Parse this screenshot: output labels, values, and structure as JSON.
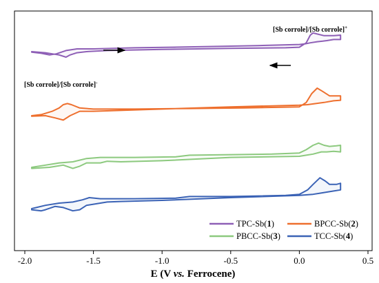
{
  "chart_data": {
    "type": "line",
    "title": "",
    "xlabel_parts": [
      "E (V ",
      "vs.",
      " Ferrocene)"
    ],
    "ylabel": "",
    "xlim": [
      -2.05,
      0.5
    ],
    "xticks": [
      -2.0,
      -1.5,
      -1.0,
      -0.5,
      0.0,
      0.5
    ],
    "xtick_labels": [
      "-2.0",
      "-1.5",
      "-1.0",
      "-0.5",
      "0.0",
      "0.5"
    ],
    "yticks_shown": false,
    "grid": false,
    "legend_position": "bottom-right",
    "annotations": {
      "oxidation": {
        "text": "[Sb corrole]/[Sb corrole]",
        "sup": "+"
      },
      "reduction": {
        "text": "[Sb corrole]/[Sb corrole]",
        "sup": "-"
      }
    },
    "series": [
      {
        "name": "TPC-Sb(1)",
        "name_prefix": "TPC-Sb(",
        "name_num": "1",
        "name_suffix": ")",
        "color": "#8e5fb6",
        "forward": [
          [
            -1.95,
            0
          ],
          [
            -1.85,
            -1
          ],
          [
            -1.75,
            -3
          ],
          [
            -1.7,
            -5
          ],
          [
            -1.67,
            -3
          ],
          [
            -1.62,
            -1
          ],
          [
            -1.55,
            0
          ],
          [
            -1.4,
            1
          ],
          [
            -1.0,
            2
          ],
          [
            -0.5,
            3
          ],
          [
            -0.1,
            3.5
          ],
          [
            0.0,
            4
          ],
          [
            0.05,
            8
          ],
          [
            0.08,
            15
          ],
          [
            0.1,
            17
          ],
          [
            0.13,
            16
          ],
          [
            0.18,
            14.5
          ],
          [
            0.25,
            14.5
          ],
          [
            0.3,
            15
          ]
        ],
        "reverse": [
          [
            0.3,
            11
          ],
          [
            0.25,
            11
          ],
          [
            0.2,
            10
          ],
          [
            0.17,
            9.5
          ],
          [
            0.13,
            9
          ],
          [
            0.08,
            8
          ],
          [
            0.04,
            7
          ],
          [
            0.0,
            6.5
          ],
          [
            -0.3,
            5.5
          ],
          [
            -0.7,
            4.5
          ],
          [
            -1.2,
            3.5
          ],
          [
            -1.5,
            2.5
          ],
          [
            -1.62,
            2.5
          ],
          [
            -1.7,
            1
          ],
          [
            -1.77,
            -2
          ],
          [
            -1.82,
            -3
          ],
          [
            -1.88,
            -1.5
          ],
          [
            -1.95,
            -0.5
          ]
        ],
        "offset": 75
      },
      {
        "name": "BPCC-Sb(2)",
        "name_prefix": "BPCC-Sb(",
        "name_num": "2",
        "name_suffix": ")",
        "color": "#ee6f2d",
        "forward": [
          [
            -1.95,
            0
          ],
          [
            -1.88,
            1
          ],
          [
            -1.8,
            4
          ],
          [
            -1.75,
            7
          ],
          [
            -1.72,
            10
          ],
          [
            -1.69,
            11
          ],
          [
            -1.66,
            10
          ],
          [
            -1.6,
            7
          ],
          [
            -1.5,
            6
          ],
          [
            -1.2,
            6
          ],
          [
            -0.8,
            6.5
          ],
          [
            -0.4,
            7
          ],
          [
            0.0,
            8
          ],
          [
            0.05,
            12
          ],
          [
            0.09,
            20
          ],
          [
            0.13,
            25
          ],
          [
            0.17,
            22
          ],
          [
            0.22,
            18
          ],
          [
            0.28,
            18
          ],
          [
            0.3,
            18
          ]
        ],
        "reverse": [
          [
            0.3,
            14
          ],
          [
            0.25,
            13.5
          ],
          [
            0.18,
            12
          ],
          [
            0.12,
            11
          ],
          [
            0.06,
            10
          ],
          [
            0.0,
            9.5
          ],
          [
            -0.5,
            8
          ],
          [
            -1.0,
            6
          ],
          [
            -1.5,
            4
          ],
          [
            -1.6,
            4
          ],
          [
            -1.67,
            0
          ],
          [
            -1.72,
            -4
          ],
          [
            -1.78,
            -2
          ],
          [
            -1.85,
            0
          ],
          [
            -1.95,
            -0.5
          ]
        ],
        "offset": 168
      },
      {
        "name": "PBCC-Sb(3)",
        "name_prefix": "PBCC-Sb(",
        "name_num": "3",
        "name_suffix": ")",
        "color": "#8cc97e",
        "forward": [
          [
            -1.95,
            0
          ],
          [
            -1.85,
            2
          ],
          [
            -1.75,
            4
          ],
          [
            -1.65,
            5
          ],
          [
            -1.55,
            8
          ],
          [
            -1.45,
            9
          ],
          [
            -1.2,
            9
          ],
          [
            -0.9,
            9.5
          ],
          [
            -0.8,
            11
          ],
          [
            -0.5,
            11.5
          ],
          [
            -0.2,
            12
          ],
          [
            0.0,
            13
          ],
          [
            0.05,
            16
          ],
          [
            0.1,
            20
          ],
          [
            0.14,
            22
          ],
          [
            0.18,
            20
          ],
          [
            0.22,
            19
          ],
          [
            0.27,
            19.5
          ],
          [
            0.3,
            20
          ]
        ],
        "reverse": [
          [
            0.3,
            14
          ],
          [
            0.25,
            14.5
          ],
          [
            0.2,
            14
          ],
          [
            0.16,
            14
          ],
          [
            0.1,
            12
          ],
          [
            0.05,
            11
          ],
          [
            0.0,
            10
          ],
          [
            -0.5,
            9
          ],
          [
            -1.0,
            6
          ],
          [
            -1.3,
            5
          ],
          [
            -1.4,
            5.5
          ],
          [
            -1.45,
            4
          ],
          [
            -1.55,
            4
          ],
          [
            -1.6,
            1
          ],
          [
            -1.65,
            -1
          ],
          [
            -1.72,
            2
          ],
          [
            -1.82,
            0
          ],
          [
            -1.95,
            -1
          ]
        ],
        "offset": 243
      },
      {
        "name": "TCC-Sb(4)",
        "name_prefix": "TCC-Sb(",
        "name_num": "4",
        "name_suffix": ")",
        "color": "#3a62b5",
        "forward": [
          [
            -1.95,
            0
          ],
          [
            -1.85,
            3
          ],
          [
            -1.75,
            5
          ],
          [
            -1.65,
            6
          ],
          [
            -1.58,
            8
          ],
          [
            -1.53,
            10
          ],
          [
            -1.45,
            9
          ],
          [
            -1.2,
            9
          ],
          [
            -0.9,
            9.5
          ],
          [
            -0.8,
            11
          ],
          [
            -0.5,
            11
          ],
          [
            -0.1,
            12
          ],
          [
            0.0,
            13
          ],
          [
            0.06,
            17
          ],
          [
            0.1,
            22
          ],
          [
            0.15,
            28
          ],
          [
            0.19,
            25
          ],
          [
            0.22,
            22
          ],
          [
            0.27,
            22
          ],
          [
            0.3,
            23
          ]
        ],
        "reverse": [
          [
            0.3,
            17
          ],
          [
            0.25,
            16
          ],
          [
            0.2,
            15
          ],
          [
            0.15,
            14
          ],
          [
            0.1,
            13
          ],
          [
            0.05,
            12.5
          ],
          [
            0.0,
            12
          ],
          [
            -0.5,
            10
          ],
          [
            -1.0,
            7.5
          ],
          [
            -1.3,
            6.5
          ],
          [
            -1.4,
            6
          ],
          [
            -1.45,
            5
          ],
          [
            -1.5,
            4
          ],
          [
            -1.55,
            3
          ],
          [
            -1.6,
            -1
          ],
          [
            -1.65,
            -2
          ],
          [
            -1.72,
            1
          ],
          [
            -1.78,
            2
          ],
          [
            -1.85,
            -1
          ],
          [
            -1.88,
            -2
          ],
          [
            -1.95,
            -1
          ]
        ],
        "offset": 303
      }
    ]
  }
}
